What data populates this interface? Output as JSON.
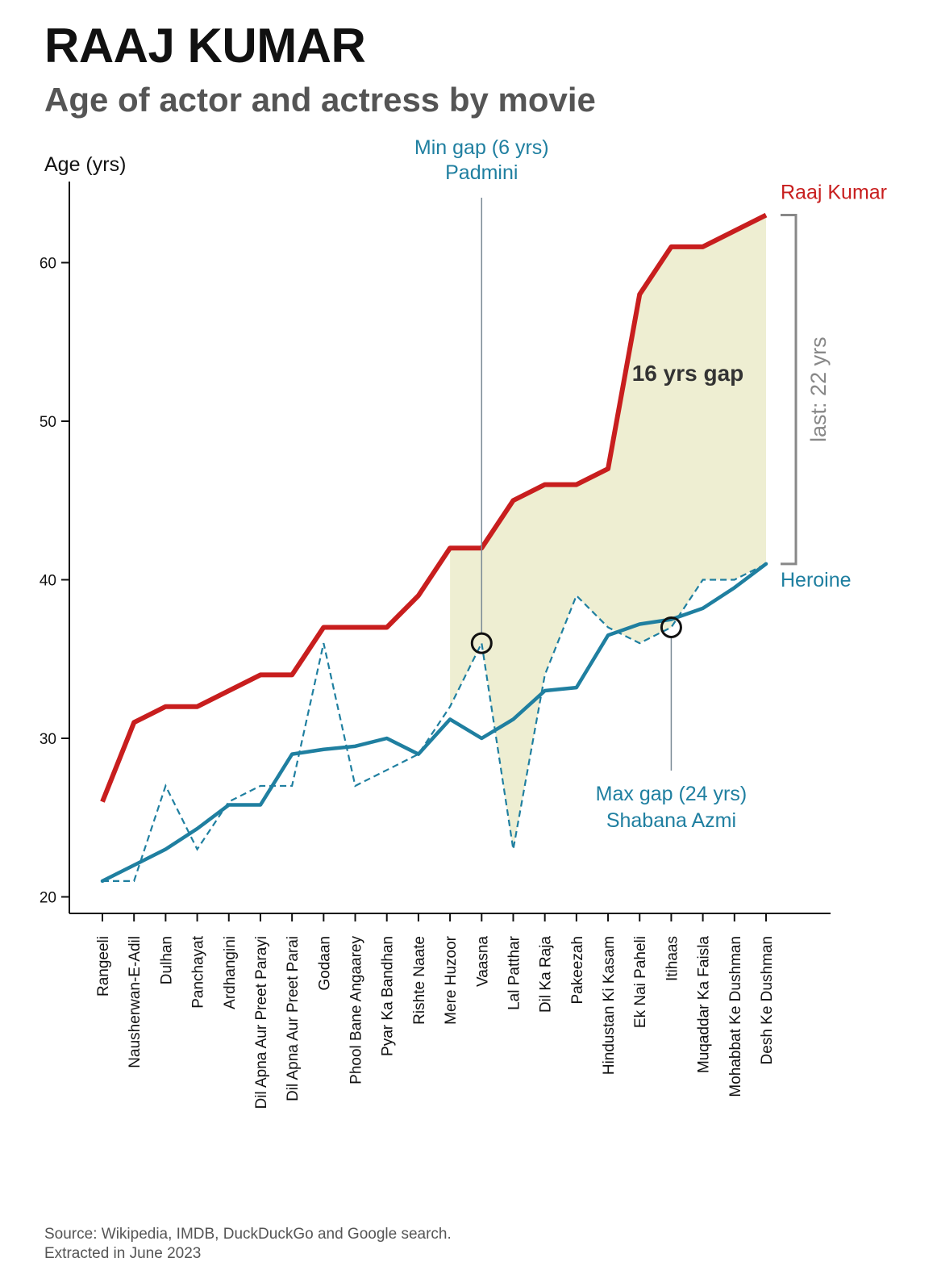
{
  "title": "RAAJ KUMAR",
  "subtitle": "Age of actor and actress by movie",
  "source_lines": [
    "Source: Wikipedia, IMDB, DuckDuckGo and Google search.",
    "Extracted in June 2023"
  ],
  "colors": {
    "actor": "#c81e1e",
    "heroine": "#1f7fa0",
    "gap_fill": "#eeeed2",
    "bracket": "#888888",
    "text": "#111111",
    "gap_text": "#333333",
    "leader": "#7a8a95"
  },
  "chart_data": {
    "type": "line",
    "ylabel": "Age (yrs)",
    "ylim": [
      19,
      65
    ],
    "yticks": [
      20,
      30,
      40,
      50,
      60
    ],
    "grid": false,
    "categories": [
      "Rangeeli",
      "Nausherwan-E-Adil",
      "Dulhan",
      "Panchayat",
      "Ardhangini",
      "Dil Apna Aur Preet Parayi",
      "Dil Apna Aur Preet Parai",
      "Godaan",
      "Phool Bane Angaarey",
      "Pyar Ka Bandhan",
      "Rishte Naate",
      "Mere Huzoor",
      "Vaasna",
      "Lal Patthar",
      "Dil Ka Raja",
      "Pakeezah",
      "Hindustan Ki Kasam",
      "Ek Nai Paheli",
      "Itihaas",
      "Muqaddar Ka Faisla",
      "Mohabbat Ke Dushman",
      "Desh Ke Dushman"
    ],
    "series": [
      {
        "name": "Raaj Kumar",
        "style": "solid-thick",
        "values": [
          26,
          31,
          32,
          32,
          33,
          34,
          34,
          37,
          37,
          37,
          39,
          42,
          42,
          45,
          46,
          46,
          47,
          58,
          61,
          61,
          62,
          63
        ]
      },
      {
        "name": "Heroine",
        "style": "solid",
        "values": [
          21,
          22,
          23,
          24.3,
          25.8,
          25.8,
          29,
          29.3,
          29.5,
          30,
          29,
          31.2,
          30,
          31.2,
          33,
          33.2,
          36.5,
          37.2,
          37.5,
          38.2,
          39.5,
          41
        ]
      },
      {
        "style": "dashed",
        "values": [
          21,
          21,
          27,
          23,
          26,
          27,
          27,
          36,
          27,
          28,
          29,
          32,
          36,
          23,
          34,
          39,
          37,
          36,
          37,
          40,
          40,
          41
        ]
      }
    ],
    "gap_shade": {
      "from_index": 11,
      "to_index": 21
    },
    "annotations": {
      "gap_label": "16 yrs gap",
      "last_bracket": "last: 22 yrs",
      "min_gap": {
        "lines": [
          "Min gap (6 yrs)",
          "Padmini"
        ],
        "index": 12,
        "value": 36
      },
      "max_gap": {
        "lines": [
          "Max gap (24 yrs)",
          "Shabana Azmi"
        ],
        "index": 18,
        "value": 37
      }
    }
  }
}
